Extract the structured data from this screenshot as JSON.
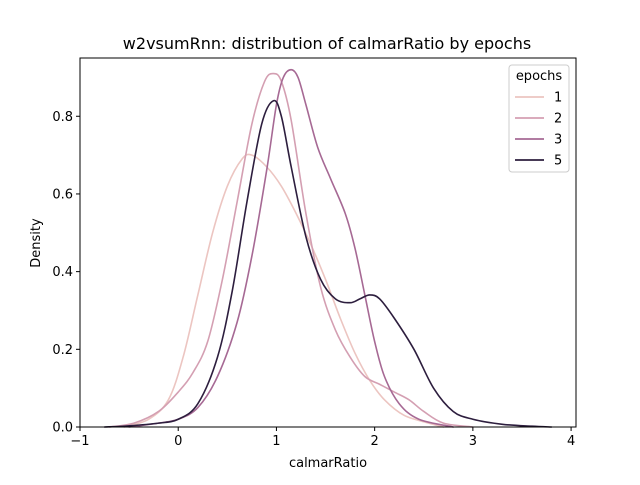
{
  "chart_data": {
    "type": "line",
    "title": "w2vsumRnn: distribution of calmarRatio by epochs",
    "xlabel": "calmarRatio",
    "ylabel": "Density",
    "xlim": [
      -1,
      4.05
    ],
    "ylim": [
      0,
      0.95
    ],
    "xticks": [
      -1,
      0,
      1,
      2,
      3,
      4
    ],
    "xtick_labels": [
      "−1",
      "0",
      "1",
      "2",
      "3",
      "4"
    ],
    "yticks": [
      0.0,
      0.2,
      0.4,
      0.6,
      0.8
    ],
    "ytick_labels": [
      "0.0",
      "0.2",
      "0.4",
      "0.6",
      "0.8"
    ],
    "grid": false,
    "legend": {
      "title": "epochs",
      "placement": "top-right"
    },
    "series": [
      {
        "name": "1",
        "color": "#ecc5c1",
        "points": [
          [
            -0.55,
            0.0
          ],
          [
            -0.3,
            0.02
          ],
          [
            -0.1,
            0.07
          ],
          [
            0.05,
            0.18
          ],
          [
            0.2,
            0.34
          ],
          [
            0.35,
            0.5
          ],
          [
            0.5,
            0.62
          ],
          [
            0.65,
            0.69
          ],
          [
            0.75,
            0.7
          ],
          [
            0.9,
            0.67
          ],
          [
            1.05,
            0.62
          ],
          [
            1.2,
            0.55
          ],
          [
            1.35,
            0.47
          ],
          [
            1.5,
            0.38
          ],
          [
            1.65,
            0.28
          ],
          [
            1.8,
            0.19
          ],
          [
            1.95,
            0.12
          ],
          [
            2.1,
            0.07
          ],
          [
            2.3,
            0.03
          ],
          [
            2.55,
            0.01
          ],
          [
            2.7,
            0.0
          ]
        ]
      },
      {
        "name": "2",
        "color": "#d49fb2",
        "points": [
          [
            -0.7,
            0.0
          ],
          [
            -0.45,
            0.01
          ],
          [
            -0.2,
            0.04
          ],
          [
            0.0,
            0.09
          ],
          [
            0.15,
            0.14
          ],
          [
            0.3,
            0.22
          ],
          [
            0.45,
            0.38
          ],
          [
            0.6,
            0.58
          ],
          [
            0.75,
            0.78
          ],
          [
            0.88,
            0.89
          ],
          [
            0.97,
            0.91
          ],
          [
            1.05,
            0.89
          ],
          [
            1.15,
            0.79
          ],
          [
            1.3,
            0.55
          ],
          [
            1.45,
            0.36
          ],
          [
            1.6,
            0.25
          ],
          [
            1.75,
            0.18
          ],
          [
            1.9,
            0.13
          ],
          [
            2.05,
            0.11
          ],
          [
            2.2,
            0.09
          ],
          [
            2.35,
            0.07
          ],
          [
            2.5,
            0.04
          ],
          [
            2.7,
            0.01
          ],
          [
            3.0,
            0.0
          ]
        ]
      },
      {
        "name": "3",
        "color": "#a66994",
        "points": [
          [
            -0.5,
            0.0
          ],
          [
            -0.2,
            0.01
          ],
          [
            0.0,
            0.02
          ],
          [
            0.2,
            0.05
          ],
          [
            0.4,
            0.13
          ],
          [
            0.6,
            0.27
          ],
          [
            0.75,
            0.44
          ],
          [
            0.9,
            0.66
          ],
          [
            1.0,
            0.83
          ],
          [
            1.07,
            0.9
          ],
          [
            1.15,
            0.92
          ],
          [
            1.22,
            0.9
          ],
          [
            1.3,
            0.83
          ],
          [
            1.42,
            0.72
          ],
          [
            1.55,
            0.64
          ],
          [
            1.7,
            0.55
          ],
          [
            1.8,
            0.46
          ],
          [
            1.9,
            0.34
          ],
          [
            2.0,
            0.22
          ],
          [
            2.1,
            0.13
          ],
          [
            2.25,
            0.06
          ],
          [
            2.45,
            0.02
          ],
          [
            2.8,
            0.0
          ]
        ]
      },
      {
        "name": "5",
        "color": "#2d1e3e",
        "points": [
          [
            -0.75,
            0.0
          ],
          [
            -0.5,
            0.003
          ],
          [
            -0.2,
            0.01
          ],
          [
            0.0,
            0.02
          ],
          [
            0.2,
            0.06
          ],
          [
            0.4,
            0.18
          ],
          [
            0.55,
            0.35
          ],
          [
            0.7,
            0.58
          ],
          [
            0.85,
            0.78
          ],
          [
            0.97,
            0.84
          ],
          [
            1.05,
            0.8
          ],
          [
            1.15,
            0.67
          ],
          [
            1.3,
            0.49
          ],
          [
            1.45,
            0.38
          ],
          [
            1.6,
            0.33
          ],
          [
            1.75,
            0.32
          ],
          [
            1.85,
            0.33
          ],
          [
            1.95,
            0.34
          ],
          [
            2.05,
            0.33
          ],
          [
            2.2,
            0.28
          ],
          [
            2.4,
            0.2
          ],
          [
            2.6,
            0.1
          ],
          [
            2.8,
            0.04
          ],
          [
            3.0,
            0.02
          ],
          [
            3.3,
            0.007
          ],
          [
            3.6,
            0.002
          ],
          [
            3.8,
            0.0
          ]
        ]
      }
    ]
  }
}
